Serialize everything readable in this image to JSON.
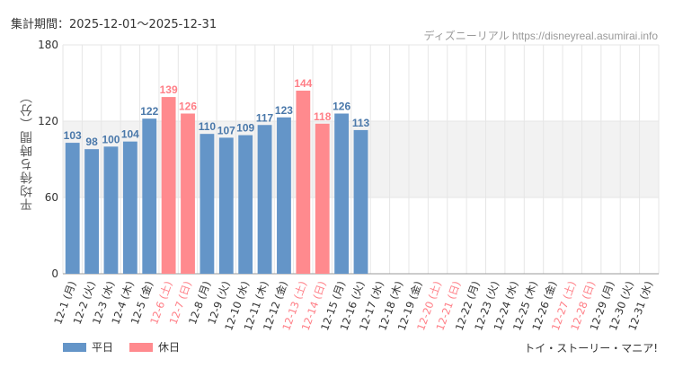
{
  "header": {
    "period_label": "集計期間：2025-12-01〜2025-12-31",
    "credit": "ディズニーリアル https://disneyreal.asumirai.info"
  },
  "colors": {
    "weekday": "#6495c8",
    "holiday": "#ff8a8e",
    "holiday_label": "#ff7f87",
    "weekday_label": "#4a78aa",
    "band": "#f2f2f2",
    "grid": "#e6e6e6"
  },
  "legend": {
    "weekday": "平日",
    "holiday": "休日"
  },
  "attraction": "トイ・ストーリー・マニア!",
  "chart_data": {
    "type": "bar",
    "ylabel": "平均待ち時間（分）",
    "ylim": [
      0,
      180
    ],
    "yticks": [
      "0",
      "60",
      "120",
      "180"
    ],
    "band": [
      60,
      120
    ],
    "categories": [
      "12-1 (月)",
      "12-2 (火)",
      "12-3 (水)",
      "12-4 (木)",
      "12-5 (金)",
      "12-6 (土)",
      "12-7 (日)",
      "12-8 (月)",
      "12-9 (火)",
      "12-10 (水)",
      "12-11 (木)",
      "12-12 (金)",
      "12-13 (土)",
      "12-14 (日)",
      "12-15 (月)",
      "12-16 (火)",
      "12-17 (水)",
      "12-18 (木)",
      "12-19 (金)",
      "12-20 (土)",
      "12-21 (日)",
      "12-22 (月)",
      "12-23 (火)",
      "12-24 (水)",
      "12-25 (木)",
      "12-26 (金)",
      "12-27 (土)",
      "12-28 (日)",
      "12-29 (月)",
      "12-30 (火)",
      "12-31 (水)"
    ],
    "values": [
      103,
      98,
      100,
      104,
      122,
      139,
      126,
      110,
      107,
      109,
      117,
      123,
      144,
      118,
      126,
      113,
      null,
      null,
      null,
      null,
      null,
      null,
      null,
      null,
      null,
      null,
      null,
      null,
      null,
      null,
      null
    ],
    "holiday": [
      false,
      false,
      false,
      false,
      false,
      true,
      true,
      false,
      false,
      false,
      false,
      false,
      true,
      true,
      false,
      false,
      false,
      false,
      false,
      true,
      true,
      false,
      false,
      false,
      false,
      false,
      true,
      true,
      false,
      false,
      false
    ]
  }
}
